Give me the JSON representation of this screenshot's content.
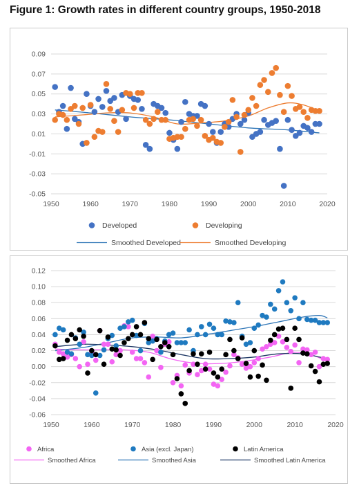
{
  "figure": {
    "title": "Figure 1: Growth rates in different country groups, 1950-2018"
  },
  "chart_data": [
    {
      "type": "scatter",
      "title": "",
      "xlabel": "",
      "ylabel": "",
      "xlim": [
        1950,
        2020
      ],
      "ylim": [
        -0.05,
        0.09
      ],
      "x_ticks": [
        "1950",
        "1960",
        "1970",
        "1980",
        "1990",
        "2000",
        "2010",
        "2020"
      ],
      "y_ticks": [
        "0.09",
        "0.07",
        "0.05",
        "0.03",
        "0.01",
        "-0.01",
        "-0.03",
        "-0.05"
      ],
      "grid": "horizontal",
      "legend": "bottom",
      "series": [
        {
          "name": "Developed",
          "kind": "points",
          "color": "#4472C4",
          "x": [
            1951,
            1952,
            1953,
            1954,
            1955,
            1956,
            1957,
            1958,
            1959,
            1960,
            1961,
            1962,
            1963,
            1964,
            1965,
            1966,
            1967,
            1968,
            1969,
            1970,
            1971,
            1972,
            1973,
            1974,
            1975,
            1976,
            1977,
            1978,
            1979,
            1980,
            1981,
            1982,
            1983,
            1984,
            1985,
            1986,
            1987,
            1988,
            1989,
            1990,
            1991,
            1992,
            1993,
            1994,
            1995,
            1996,
            1997,
            1998,
            1999,
            2000,
            2001,
            2002,
            2003,
            2004,
            2005,
            2006,
            2007,
            2008,
            2009,
            2010,
            2011,
            2012,
            2013,
            2014,
            2015,
            2016,
            2017,
            2018
          ],
          "y": [
            0.057,
            0.032,
            0.038,
            0.015,
            0.056,
            0.025,
            0.022,
            0.0,
            0.05,
            0.038,
            0.032,
            0.045,
            0.037,
            0.053,
            0.043,
            0.046,
            0.032,
            0.049,
            0.025,
            0.048,
            0.045,
            0.044,
            0.035,
            -0.001,
            -0.005,
            0.04,
            0.038,
            0.036,
            0.031,
            0.011,
            0.004,
            -0.005,
            0.022,
            0.042,
            0.03,
            0.028,
            0.028,
            0.04,
            0.038,
            0.02,
            0.012,
            0.001,
            0.012,
            0.02,
            0.017,
            0.025,
            0.03,
            0.02,
            0.024,
            0.031,
            0.007,
            0.01,
            0.012,
            0.024,
            0.019,
            0.021,
            0.023,
            -0.005,
            -0.042,
            0.024,
            0.014,
            0.008,
            0.011,
            0.018,
            0.016,
            0.012,
            0.02,
            0.02
          ]
        },
        {
          "name": "Developing",
          "kind": "points",
          "color": "#ED7D31",
          "x": [
            1951,
            1952,
            1953,
            1954,
            1955,
            1956,
            1957,
            1958,
            1959,
            1960,
            1961,
            1962,
            1963,
            1964,
            1965,
            1966,
            1967,
            1968,
            1969,
            1970,
            1971,
            1972,
            1973,
            1974,
            1975,
            1976,
            1977,
            1978,
            1979,
            1980,
            1981,
            1982,
            1983,
            1984,
            1985,
            1986,
            1987,
            1988,
            1989,
            1990,
            1991,
            1992,
            1993,
            1994,
            1995,
            1996,
            1997,
            1998,
            1999,
            2000,
            2001,
            2002,
            2003,
            2004,
            2005,
            2006,
            2007,
            2008,
            2009,
            2010,
            2011,
            2012,
            2013,
            2014,
            2015,
            2016,
            2017,
            2018
          ],
          "y": [
            0.024,
            0.03,
            0.029,
            0.024,
            0.035,
            0.038,
            0.02,
            0.036,
            0.001,
            0.039,
            0.007,
            0.013,
            0.012,
            0.06,
            0.035,
            0.023,
            0.012,
            0.034,
            0.051,
            0.05,
            0.036,
            0.051,
            0.051,
            0.024,
            0.02,
            0.025,
            0.032,
            0.024,
            0.024,
            0.005,
            0.006,
            0.007,
            0.007,
            0.015,
            0.024,
            0.025,
            0.018,
            0.024,
            0.008,
            0.004,
            0.006,
            0.002,
            0.001,
            0.017,
            0.022,
            0.044,
            0.027,
            -0.008,
            0.029,
            0.034,
            0.046,
            0.038,
            0.059,
            0.064,
            0.052,
            0.071,
            0.076,
            0.049,
            0.032,
            0.058,
            0.048,
            0.035,
            0.037,
            0.032,
            0.026,
            0.034,
            0.033,
            0.033
          ]
        },
        {
          "name": "Smoothed Developed",
          "kind": "line",
          "color": "#2E75B6",
          "x": [
            1951,
            1960,
            1970,
            1980,
            1990,
            2000,
            2010,
            2018
          ],
          "y": [
            0.034,
            0.031,
            0.027,
            0.024,
            0.02,
            0.016,
            0.014,
            0.011
          ]
        },
        {
          "name": "Smoothed Developing",
          "kind": "line",
          "color": "#ED7D31",
          "x": [
            1951,
            1958,
            1964,
            1970,
            1976,
            1982,
            1988,
            1994,
            2000,
            2005,
            2010,
            2014,
            2018
          ],
          "y": [
            0.027,
            0.029,
            0.031,
            0.031,
            0.027,
            0.02,
            0.021,
            0.023,
            0.028,
            0.036,
            0.041,
            0.039,
            0.033
          ]
        }
      ]
    },
    {
      "type": "scatter",
      "title": "",
      "xlabel": "",
      "ylabel": "",
      "xlim": [
        1950,
        2020
      ],
      "ylim": [
        -0.06,
        0.12
      ],
      "x_ticks": [
        "1950",
        "1960",
        "1970",
        "1980",
        "1990",
        "2000",
        "2010",
        "2020"
      ],
      "y_ticks": [
        "0.12",
        "0.10",
        "0.08",
        "0.06",
        "0.04",
        "0.02",
        "0.00",
        "-0.02",
        "-0.04",
        "-0.06"
      ],
      "grid": "horizontal",
      "legend": "bottom",
      "series": [
        {
          "name": "Africa",
          "kind": "points",
          "color": "#F365F3",
          "x": [
            1951,
            1952,
            1953,
            1954,
            1955,
            1956,
            1957,
            1958,
            1959,
            1960,
            1961,
            1962,
            1963,
            1964,
            1965,
            1966,
            1967,
            1968,
            1969,
            1970,
            1971,
            1972,
            1973,
            1974,
            1975,
            1976,
            1977,
            1978,
            1979,
            1980,
            1981,
            1982,
            1983,
            1984,
            1985,
            1986,
            1987,
            1988,
            1989,
            1990,
            1991,
            1992,
            1993,
            1994,
            1995,
            1996,
            1997,
            1998,
            1999,
            2000,
            2001,
            2002,
            2003,
            2004,
            2005,
            2006,
            2007,
            2008,
            2009,
            2010,
            2011,
            2012,
            2013,
            2014,
            2015,
            2016,
            2017,
            2018
          ],
          "y": [
            0.028,
            0.018,
            0.016,
            0.012,
            0.015,
            0.01,
            0.0,
            0.031,
            0.003,
            0.018,
            0.008,
            0.045,
            0.028,
            0.028,
            0.006,
            0.015,
            0.02,
            0.051,
            0.05,
            0.018,
            0.01,
            0.01,
            0.005,
            -0.013,
            0.038,
            0.02,
            -0.001,
            0.028,
            0.031,
            -0.02,
            -0.011,
            -0.024,
            0.002,
            -0.008,
            0.003,
            -0.01,
            -0.005,
            0.003,
            -0.003,
            -0.022,
            -0.024,
            -0.016,
            -0.007,
            0.001,
            0.015,
            0.011,
            0.003,
            -0.002,
            0.0,
            0.005,
            0.01,
            0.022,
            0.025,
            0.028,
            0.03,
            0.038,
            0.031,
            0.024,
            0.019,
            0.027,
            0.005,
            0.022,
            0.021,
            0.015,
            0.018,
            0.0,
            0.01,
            0.009
          ]
        },
        {
          "name": "Asia (excl. Japan)",
          "kind": "points",
          "color": "#1F7AC0",
          "x": [
            1951,
            1952,
            1953,
            1954,
            1955,
            1956,
            1957,
            1958,
            1959,
            1960,
            1961,
            1962,
            1963,
            1964,
            1965,
            1966,
            1967,
            1968,
            1969,
            1970,
            1971,
            1972,
            1973,
            1974,
            1975,
            1976,
            1977,
            1978,
            1979,
            1980,
            1981,
            1982,
            1983,
            1984,
            1985,
            1986,
            1987,
            1988,
            1989,
            1990,
            1991,
            1992,
            1993,
            1994,
            1995,
            1996,
            1997,
            1998,
            1999,
            2000,
            2001,
            2002,
            2003,
            2004,
            2005,
            2006,
            2007,
            2008,
            2009,
            2010,
            2011,
            2012,
            2013,
            2014,
            2015,
            2016,
            2017,
            2018
          ],
          "y": [
            0.04,
            0.048,
            0.046,
            0.018,
            0.016,
            0.036,
            0.028,
            0.043,
            0.015,
            0.014,
            -0.033,
            0.014,
            0.021,
            0.035,
            0.039,
            0.026,
            0.048,
            0.05,
            0.056,
            0.058,
            0.039,
            0.02,
            0.054,
            0.03,
            0.032,
            0.035,
            0.018,
            0.032,
            0.04,
            0.042,
            0.03,
            0.03,
            0.03,
            0.046,
            0.02,
            0.04,
            0.05,
            0.04,
            0.053,
            0.048,
            0.04,
            0.04,
            0.057,
            0.056,
            0.055,
            0.08,
            0.038,
            0.028,
            0.03,
            0.048,
            0.052,
            0.064,
            0.062,
            0.078,
            0.072,
            0.095,
            0.106,
            0.08,
            0.07,
            0.086,
            0.06,
            0.08,
            0.059,
            0.058,
            0.058,
            0.055,
            0.055,
            0.055
          ]
        },
        {
          "name": "Latin America",
          "kind": "points",
          "color": "#000000",
          "x": [
            1951,
            1952,
            1953,
            1954,
            1955,
            1956,
            1957,
            1958,
            1959,
            1960,
            1961,
            1962,
            1963,
            1964,
            1965,
            1966,
            1967,
            1968,
            1969,
            1970,
            1971,
            1972,
            1973,
            1974,
            1975,
            1976,
            1977,
            1978,
            1979,
            1980,
            1981,
            1982,
            1983,
            1984,
            1985,
            1986,
            1987,
            1988,
            1989,
            1990,
            1991,
            1992,
            1993,
            1994,
            1995,
            1996,
            1997,
            1998,
            1999,
            2000,
            2001,
            2002,
            2003,
            2004,
            2005,
            2006,
            2007,
            2008,
            2009,
            2010,
            2011,
            2012,
            2013,
            2014,
            2015,
            2016,
            2017,
            2018
          ],
          "y": [
            0.026,
            0.009,
            0.01,
            0.033,
            0.04,
            0.035,
            0.046,
            0.038,
            -0.008,
            0.02,
            0.015,
            0.045,
            0.003,
            0.037,
            0.022,
            0.021,
            0.014,
            0.03,
            0.035,
            0.04,
            0.05,
            0.04,
            0.055,
            0.035,
            0.009,
            0.034,
            0.025,
            0.03,
            0.025,
            0.015,
            -0.015,
            -0.034,
            -0.046,
            -0.005,
            0.016,
            0.003,
            0.016,
            -0.003,
            0.018,
            -0.008,
            -0.013,
            -0.003,
            0.015,
            0.034,
            0.02,
            0.01,
            0.036,
            0.004,
            -0.013,
            0.02,
            -0.012,
            0.002,
            -0.017,
            0.033,
            0.04,
            0.047,
            0.048,
            0.034,
            -0.027,
            0.048,
            0.034,
            0.017,
            0.016,
            0.001,
            -0.006,
            -0.019,
            0.003,
            0.004
          ]
        },
        {
          "name": "Smoothed Africa",
          "kind": "line",
          "color": "#F365F3",
          "x": [
            1951,
            1956,
            1962,
            1968,
            1974,
            1980,
            1986,
            1992,
            1998,
            2004,
            2010,
            2015,
            2018
          ],
          "y": [
            0.022,
            0.021,
            0.021,
            0.021,
            0.018,
            0.009,
            0.004,
            0.004,
            0.007,
            0.012,
            0.018,
            0.013,
            0.006
          ]
        },
        {
          "name": "Smoothed Asia",
          "kind": "line",
          "color": "#2E75B6",
          "x": [
            1951,
            1958,
            1964,
            1970,
            1976,
            1982,
            1988,
            1994,
            2000,
            2006,
            2012,
            2016,
            2018
          ],
          "y": [
            0.02,
            0.024,
            0.03,
            0.036,
            0.037,
            0.036,
            0.04,
            0.045,
            0.05,
            0.056,
            0.062,
            0.064,
            0.061
          ]
        },
        {
          "name": "Smoothed Latin America",
          "kind": "line",
          "color": "#1F3864",
          "x": [
            1951,
            1958,
            1964,
            1970,
            1976,
            1982,
            1988,
            1994,
            2000,
            2006,
            2012,
            2016,
            2018
          ],
          "y": [
            0.025,
            0.028,
            0.027,
            0.025,
            0.021,
            0.015,
            0.01,
            0.01,
            0.012,
            0.016,
            0.016,
            0.012,
            0.01
          ]
        }
      ]
    }
  ]
}
